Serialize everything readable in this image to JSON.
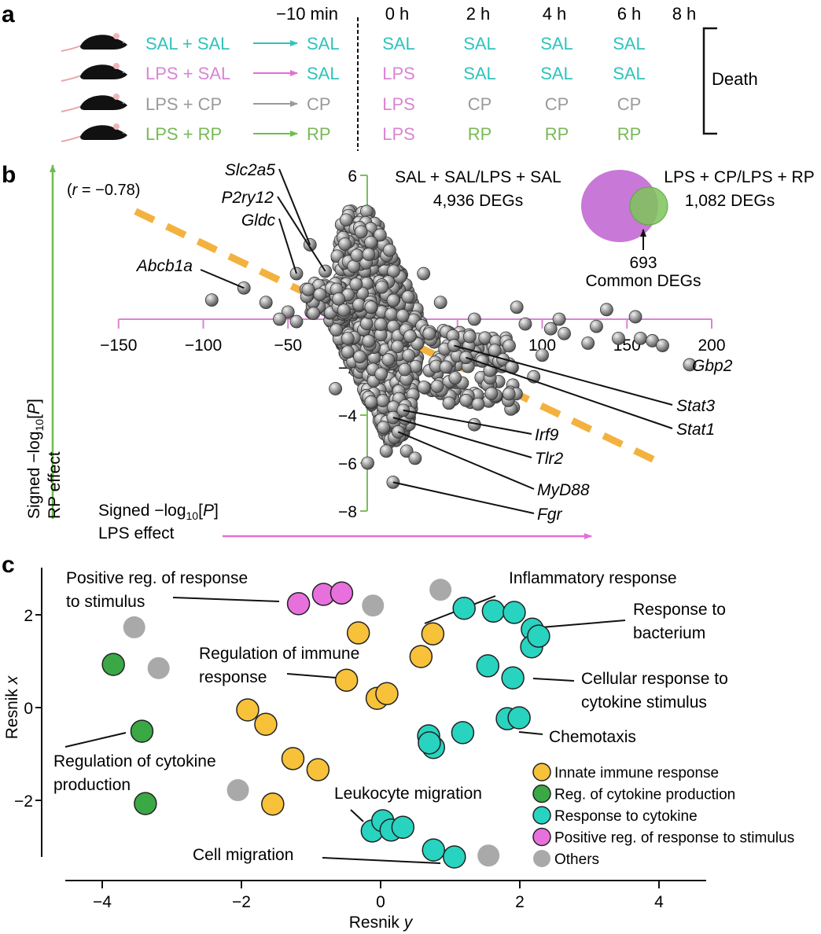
{
  "panels": {
    "a": {
      "letter": "a",
      "time_headers": [
        "−10 min",
        "0 h",
        "2 h",
        "4 h",
        "6 h",
        "8 h"
      ],
      "groups": [
        {
          "label": "SAL + SAL",
          "color": "#2fc3bd",
          "arrow_color": "#2fc3bd",
          "pre": {
            "text": "SAL",
            "color": "#2fc3bd"
          },
          "schedule": [
            {
              "text": "SAL",
              "color": "#2fc3bd"
            },
            {
              "text": "SAL",
              "color": "#2fc3bd"
            },
            {
              "text": "SAL",
              "color": "#2fc3bd"
            },
            {
              "text": "SAL",
              "color": "#2fc3bd"
            }
          ]
        },
        {
          "label": "LPS + SAL",
          "color": "#d985d3",
          "arrow_color": "#e46fd5",
          "pre": {
            "text": "SAL",
            "color": "#2fc3bd"
          },
          "schedule": [
            {
              "text": "LPS",
              "color": "#d985d3"
            },
            {
              "text": "SAL",
              "color": "#2fc3bd"
            },
            {
              "text": "SAL",
              "color": "#2fc3bd"
            },
            {
              "text": "SAL",
              "color": "#2fc3bd"
            }
          ]
        },
        {
          "label": "LPS + CP",
          "color": "#9a9a9a",
          "arrow_color": "#9a9a9a",
          "pre": {
            "text": "CP",
            "color": "#9a9a9a"
          },
          "schedule": [
            {
              "text": "LPS",
              "color": "#d985d3"
            },
            {
              "text": "CP",
              "color": "#9a9a9a"
            },
            {
              "text": "CP",
              "color": "#9a9a9a"
            },
            {
              "text": "CP",
              "color": "#9a9a9a"
            }
          ]
        },
        {
          "label": "LPS + RP",
          "color": "#78b957",
          "arrow_color": "#6cc04a",
          "pre": {
            "text": "RP",
            "color": "#78b957"
          },
          "schedule": [
            {
              "text": "LPS",
              "color": "#d985d3"
            },
            {
              "text": "RP",
              "color": "#78b957"
            },
            {
              "text": "RP",
              "color": "#78b957"
            },
            {
              "text": "RP",
              "color": "#78b957"
            }
          ]
        }
      ],
      "outcome": "Death"
    },
    "b": {
      "letter": "b"
    },
    "c": {
      "letter": "c"
    }
  },
  "chart_data": [
    {
      "id": "panel-b",
      "type": "scatter",
      "title": "",
      "xlabel": "Signed −log10[P] LPS effect",
      "ylabel": "Signed −log10[P] RP effect",
      "xlabel_lines": [
        "Signed −log",
        "10",
        "[",
        "P",
        "]",
        "LPS effect"
      ],
      "ylabel_lines": [
        "Signed −log",
        "10",
        "[",
        "P",
        "]",
        "RP effect"
      ],
      "xlim": [
        -150,
        200
      ],
      "ylim": [
        -8,
        6
      ],
      "xticks": [
        -150,
        -100,
        -50,
        0,
        50,
        100,
        150,
        200
      ],
      "xtick_labels": [
        "−150",
        "−100",
        "−50",
        "",
        "50",
        "100",
        "150",
        "200"
      ],
      "yticks": [
        -8,
        -6,
        -4,
        -2,
        0,
        2,
        4,
        6
      ],
      "ytick_labels": [
        "−8",
        "−6",
        "−4",
        "−2",
        "",
        "",
        "4",
        "6"
      ],
      "x_axis_color": "#d985d3",
      "y_axis_color": "#7cbf5a",
      "point_color": "#8a8a8a",
      "correlation": {
        "label_prefix": "(",
        "r_symbol": "r",
        "label_value": " = −0.78)",
        "r": -0.78,
        "line_color": "#f3b23f",
        "line_start": [
          -140,
          4.5
        ],
        "line_end": [
          170,
          -6
        ]
      },
      "venn": {
        "left": {
          "label": "SAL + SAL/LPS + SAL",
          "count": "4,936 DEGs",
          "color": "#c878d6"
        },
        "right": {
          "label": "LPS + CP/LPS + RP",
          "count": "1,082 DEGs",
          "color": "#7cc459"
        },
        "overlap": {
          "count": "693",
          "label": "Common DEGs"
        }
      },
      "labeled_points": [
        {
          "gene": "Slc2a5",
          "x": -37,
          "y": 3.1
        },
        {
          "gene": "P2ry12",
          "x": -28,
          "y": 2.0
        },
        {
          "gene": "Gldc",
          "x": -45,
          "y": 1.9
        },
        {
          "gene": "Abcb1a",
          "x": -76,
          "y": 1.3
        },
        {
          "gene": "Gbp2",
          "x": 187,
          "y": -1.9
        },
        {
          "gene": "Stat3",
          "x": 48,
          "y": -1.1
        },
        {
          "gene": "Stat1",
          "x": 55,
          "y": -1.6
        },
        {
          "gene": "Irf9",
          "x": 18,
          "y": -3.8
        },
        {
          "gene": "Tlr2",
          "x": 12,
          "y": -4.1
        },
        {
          "gene": "MyD88",
          "x": 15,
          "y": -4.7
        },
        {
          "gene": "Fgr",
          "x": 12,
          "y": -6.8
        }
      ],
      "outlier_points": [
        {
          "x": -95,
          "y": 0.8
        },
        {
          "x": -63,
          "y": 0.7
        },
        {
          "x": -50,
          "y": 0.3
        },
        {
          "x": -55,
          "y": 0.0
        },
        {
          "x": -45,
          "y": -0.1
        },
        {
          "x": -22,
          "y": -2.9
        },
        {
          "x": -3,
          "y": -6.0
        },
        {
          "x": 8,
          "y": -5.5
        },
        {
          "x": 20,
          "y": -5.5
        },
        {
          "x": 25,
          "y": -5.8
        },
        {
          "x": 60,
          "y": 0.0
        },
        {
          "x": 90,
          "y": -0.2
        },
        {
          "x": 110,
          "y": 0.0
        },
        {
          "x": 113,
          "y": -0.6
        },
        {
          "x": 132,
          "y": -0.3
        },
        {
          "x": 138,
          "y": 0.4
        },
        {
          "x": 127,
          "y": -1.0
        },
        {
          "x": 145,
          "y": -0.8
        },
        {
          "x": 155,
          "y": 0.1
        },
        {
          "x": 158,
          "y": -0.8
        },
        {
          "x": 165,
          "y": -0.9
        },
        {
          "x": 171,
          "y": -1.1
        },
        {
          "x": 100,
          "y": -1.5
        },
        {
          "x": 70,
          "y": -3.1
        },
        {
          "x": 82,
          "y": -2.0
        },
        {
          "x": 95,
          "y": -2.4
        },
        {
          "x": 60,
          "y": -4.4
        },
        {
          "x": 45,
          "y": -3.5
        },
        {
          "x": 38,
          "y": -2.8
        },
        {
          "x": 72,
          "y": -1.3
        },
        {
          "x": 105,
          "y": -0.4
        },
        {
          "x": 85,
          "y": 0.5
        },
        {
          "x": 40,
          "y": 0.7
        },
        {
          "x": 30,
          "y": 1.9
        }
      ]
    },
    {
      "id": "panel-c",
      "type": "scatter",
      "title": "",
      "xlabel": "Resnik y",
      "ylabel": "Resnik x",
      "xlim": [
        -4.4,
        4.7
      ],
      "ylim": [
        -3.2,
        2.9
      ],
      "xticks": [
        -4,
        -2,
        0,
        2,
        4
      ],
      "xtick_labels": [
        "−4",
        "−2",
        "0",
        "2",
        "4"
      ],
      "yticks": [
        -2,
        0,
        2
      ],
      "ytick_labels": [
        "−2",
        "0",
        "2"
      ],
      "legend_position": "bottom-right",
      "series": [
        {
          "name": "Innate immune response",
          "color": "#f7c23a",
          "points": [
            [
              -0.32,
              1.61
            ],
            [
              0.75,
              1.59
            ],
            [
              0.58,
              1.1
            ],
            [
              -0.49,
              0.59
            ],
            [
              -0.05,
              0.2
            ],
            [
              0.09,
              0.3
            ],
            [
              -1.91,
              -0.05
            ],
            [
              -1.65,
              -0.36
            ],
            [
              -1.26,
              -1.1
            ],
            [
              -0.9,
              -1.34
            ],
            [
              -1.55,
              -2.08
            ]
          ]
        },
        {
          "name": "Reg. of cytokine production",
          "color": "#3aa845",
          "points": [
            [
              -3.84,
              0.93
            ],
            [
              -3.43,
              -0.51
            ],
            [
              -3.38,
              -2.07
            ]
          ]
        },
        {
          "name": "Response to cytokine",
          "color": "#28d3c0",
          "points": [
            [
              1.2,
              2.14
            ],
            [
              1.62,
              2.08
            ],
            [
              1.92,
              2.05
            ],
            [
              2.18,
              1.69
            ],
            [
              2.17,
              1.31
            ],
            [
              2.27,
              1.54
            ],
            [
              1.54,
              0.9
            ],
            [
              1.9,
              0.64
            ],
            [
              1.82,
              -0.24
            ],
            [
              1.99,
              -0.22
            ],
            [
              0.69,
              -0.61
            ],
            [
              0.76,
              -0.86
            ],
            [
              0.7,
              -0.76
            ],
            [
              1.18,
              -0.54
            ],
            [
              -0.12,
              -2.66
            ],
            [
              0.03,
              -2.44
            ],
            [
              0.15,
              -2.64
            ],
            [
              0.32,
              -2.58
            ],
            [
              0.76,
              -3.07
            ],
            [
              1.06,
              -3.22
            ]
          ]
        },
        {
          "name": "Positive reg. of response to stimulus",
          "color": "#e870dd",
          "points": [
            [
              -1.18,
              2.24
            ],
            [
              -0.82,
              2.44
            ],
            [
              -0.56,
              2.47
            ]
          ]
        },
        {
          "name": "Others",
          "color": "#a9a9a9",
          "points": [
            [
              -0.11,
              2.2
            ],
            [
              -3.54,
              1.73
            ],
            [
              -3.19,
              0.85
            ],
            [
              0.86,
              2.54
            ],
            [
              -2.05,
              -1.78
            ],
            [
              1.55,
              -3.19
            ]
          ]
        }
      ],
      "annotations": [
        {
          "text": [
            "Positive reg. of response",
            "to stimulus"
          ],
          "point": [
            -1.25,
            2.24
          ]
        },
        {
          "text": [
            "Inflammatory response"
          ],
          "point": [
            0.62,
            1.8
          ]
        },
        {
          "text": [
            "Response to",
            "bacterium"
          ],
          "point": [
            2.35,
            1.62
          ]
        },
        {
          "text": [
            "Regulation of immune",
            "response"
          ],
          "point": [
            -0.6,
            0.63
          ]
        },
        {
          "text": [
            "Cellular response to",
            "cytokine stimulus"
          ],
          "point": [
            2.05,
            0.64
          ]
        },
        {
          "text": [
            "Chemotaxis"
          ],
          "point": [
            1.95,
            -0.47
          ]
        },
        {
          "text": [
            "Regulation of cytokine",
            "production"
          ],
          "point": [
            -3.55,
            -0.55
          ]
        },
        {
          "text": [
            "Leukocyte migration"
          ],
          "point": [
            -0.2,
            -2.45
          ]
        },
        {
          "text": [
            "Cell migration"
          ],
          "point": [
            0.9,
            -3.2
          ]
        }
      ]
    }
  ]
}
